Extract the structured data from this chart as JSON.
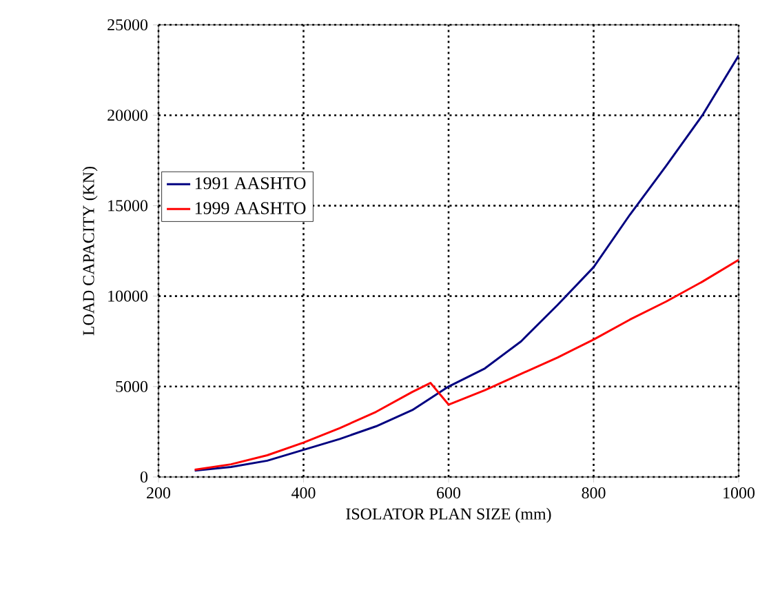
{
  "chart_data": {
    "type": "line",
    "xlabel": "ISOLATOR PLAN SIZE (mm)",
    "ylabel": "LOAD CAPACITY (KN)",
    "xlim": [
      200,
      1000
    ],
    "xticks": [
      200,
      400,
      600,
      800,
      1000
    ],
    "ylim": [
      0,
      25000
    ],
    "yticks": [
      0,
      5000,
      10000,
      15000,
      20000,
      25000
    ],
    "grid": true,
    "legend": "left",
    "marker": "none",
    "line_style": "solid",
    "series": [
      {
        "name": "1991 AASHTO",
        "color": "#000080",
        "x": [
          250,
          300,
          350,
          400,
          450,
          500,
          550,
          600,
          650,
          700,
          750,
          800,
          850,
          900,
          950,
          1000
        ],
        "values": [
          350,
          550,
          900,
          1500,
          2100,
          2800,
          3700,
          5000,
          6000,
          7500,
          9500,
          11600,
          14500,
          17200,
          20000,
          23300
        ]
      },
      {
        "name": "1999 AASHTO",
        "color": "#ff0000",
        "x": [
          250,
          300,
          350,
          400,
          450,
          500,
          550,
          575,
          600,
          650,
          700,
          750,
          800,
          850,
          900,
          950,
          1000
        ],
        "values": [
          400,
          700,
          1200,
          1900,
          2700,
          3600,
          4700,
          5200,
          4000,
          4800,
          5700,
          6600,
          7600,
          8700,
          9700,
          10800,
          12000
        ]
      }
    ]
  }
}
